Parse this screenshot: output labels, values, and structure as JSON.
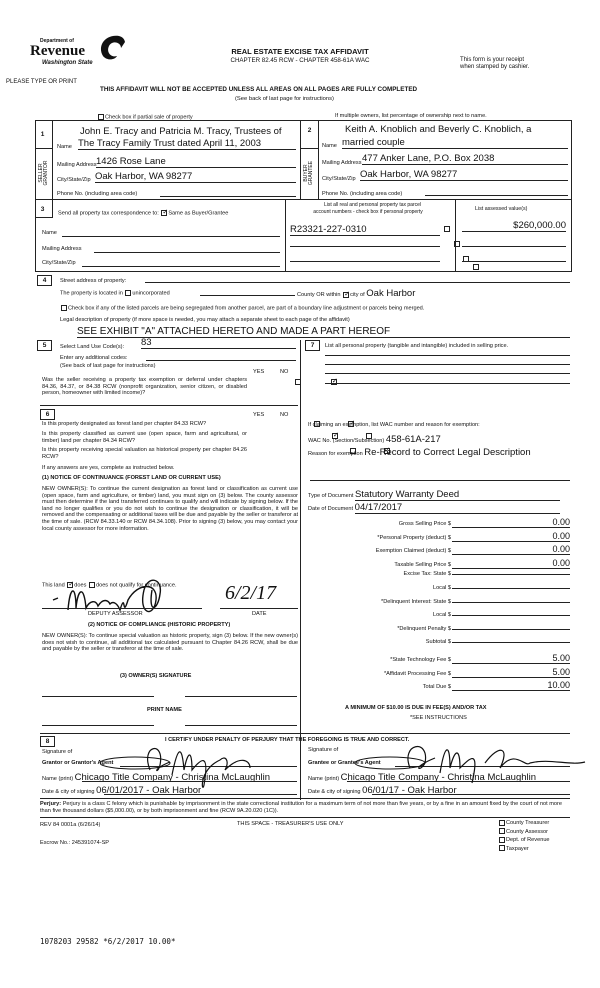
{
  "header": {
    "logo_line1": "Department of",
    "logo_line2": "Revenue",
    "logo_line3": "Washington State",
    "please": "PLEASE TYPE OR PRINT",
    "title": "REAL ESTATE EXCISE TAX AFFIDAVIT",
    "subtitle": "CHAPTER 82.45 RCW - CHAPTER 458-61A WAC",
    "receipt1": "This form is your receipt",
    "receipt2": "when stamped by cashier.",
    "warning": "THIS AFFIDAVIT WILL NOT BE ACCEPTED UNLESS ALL AREAS ON ALL PAGES ARE FULLY COMPLETED",
    "see_back": "(See back of last page for instructions)",
    "partial": "Check box if partial sale of property",
    "multiple": "If multiple owners, list percentage of ownership next to name."
  },
  "labels": {
    "name": "Name",
    "mailing": "Mailing Address",
    "city": "City/State/Zip",
    "phone": "Phone No. (including area code)",
    "seller": "SELLER GRANTOR",
    "buyer": "BUYER GRANTEE"
  },
  "seller": {
    "num": "1",
    "name1": "John E. Tracy and Patricia M. Tracy, Trustees of",
    "name2": "The Tracy Family Trust dated April 11, 2003",
    "address": "1426 Rose Lane",
    "city": "Oak Harbor, WA 98277",
    "phone": ""
  },
  "buyer": {
    "num": "2",
    "name1": "Keith A. Knoblich and Beverly C. Knoblich, a",
    "name2": "married couple",
    "address": "477 Anker Lane, P.O. Box 2038",
    "city": "Oak Harbor, WA 98277",
    "phone": ""
  },
  "sec3": {
    "num": "3",
    "send": "Send all property tax correspondence to:",
    "same": "Same as Buyer/Grantee",
    "parcel_hdr1": "List all real and personal property tax parcel",
    "parcel_hdr2": "account numbers - check box if personal property",
    "assessed_hdr": "List assessed value(s)",
    "parcel": "R23321-227-0310",
    "assessed": "$260,000.00"
  },
  "sec4": {
    "num": "4",
    "street": "Street address of property:",
    "located": "The property is located in",
    "uninc": "unincorporated",
    "county": "County OR within",
    "city_of": "city of",
    "city": "Oak Harbor",
    "segregated": "Check box if any of the listed parcels are being segregated from another parcel, are part of a boundary line adjustment or parcels being merged.",
    "legal": "Legal description of property (if more space is needed, you may attach a separate sheet to each page of the affidavit)",
    "exhibit": "SEE EXHIBIT \"A\" ATTACHED HERETO AND MADE A PART HEREOF"
  },
  "sec5": {
    "num": "5",
    "land_use": "Select Land Use Code(s):",
    "code": "83",
    "additional": "Enter any additional codes:",
    "see": "(See back of last page for instructions)",
    "yes": "YES",
    "no": "NO",
    "question": "Was the seller receiving a property tax exemption or deferral under chapters 84.36, 84.37, or 84.38 RCW (nonprofit organization, senior citizen, or disabled person, homeowner with limited income)?"
  },
  "sec6": {
    "num": "6",
    "q1": "Is this property designated as forest land per chapter 84.33 RCW?",
    "q2": "Is this property classified as current use (open space, farm and agricultural, or timber) land per chapter 84.34 RCW?",
    "q3": "Is this property receiving special valuation as historical property per chapter 84.26 RCW?",
    "if_yes": "If any answers are yes, complete as instructed below.",
    "notice1": "(1) NOTICE OF CONTINUANCE (FOREST LAND OR CURRENT USE)",
    "notice1_text": "NEW OWNER(S): To continue the current designation as forest land or classification as current use (open space, farm and agriculture, or timber) land, you must sign on (3) below. The county assessor must then determine if the land transferred continues to qualify and will indicate by signing below. If the land no longer qualifies or you do not wish to continue the designation or classification, it will be removed and the compensating or additional taxes will be due and payable by the seller or transferor at the time of sale. (RCW 84.33.140 or RCW 84.34.108). Prior to signing (3) below, you may contact your local county assessor for more information.",
    "land_a": "This land",
    "does": "does",
    "does_not": "does not qualify for continuance.",
    "deputy": "DEPUTY ASSESSOR",
    "date_lbl": "DATE",
    "date": "6/2/17",
    "notice2": "(2) NOTICE OF COMPLIANCE (HISTORIC PROPERTY)",
    "notice2_text": "NEW OWNER(S): To continue special valuation as historic property, sign (3) below. If the new owner(s) does not wish to continue, all additional tax calculated pursuant to Chapter 84.26 RCW, shall be due and payable by the seller or transferor at the time of sale.",
    "owner_sig": "(3) OWNER(S) SIGNATURE",
    "print_name": "PRINT NAME"
  },
  "sec7": {
    "num": "7",
    "text": "List all personal property (tangible and intangible) included in selling price.",
    "exemption": "If claiming an exemption, list WAC number and reason for exemption:",
    "wac_lbl": "WAC No. (Section/Subsection)",
    "wac": "458-61A-217",
    "reason_lbl": "Reason for exemption",
    "reason": "Re-Record to Correct Legal Description",
    "type_lbl": "Type of Document",
    "type": "Statutory Warranty Deed",
    "date_lbl": "Date of Document",
    "date": "04/17/2017"
  },
  "fees": [
    {
      "label": "Gross Selling Price $",
      "value": "0.00"
    },
    {
      "label": "*Personal Property (deduct) $",
      "value": "0.00"
    },
    {
      "label": "Exemption Claimed (deduct) $",
      "value": "0.00"
    },
    {
      "label": "Taxable Selling Price $",
      "value": "0.00"
    },
    {
      "label": "Excise Tax: State $",
      "value": ""
    },
    {
      "label": "Local $",
      "value": ""
    },
    {
      "label": "*Delinquent Interest: State $",
      "value": ""
    },
    {
      "label": "Local $",
      "value": ""
    },
    {
      "label": "*Delinquent Penalty $",
      "value": ""
    },
    {
      "label": "Subtotal $",
      "value": ""
    },
    {
      "label": "*State Technology Fee $",
      "value": "5.00"
    },
    {
      "label": "*Affidavit Processing Fee $",
      "value": "5.00"
    },
    {
      "label": "Total Due $",
      "value": "10.00"
    }
  ],
  "minimum": "A MINIMUM OF $10.00 IS DUE IN FEE(S) AND/OR TAX",
  "see_instr": "*SEE INSTRUCTIONS",
  "sec8": {
    "num": "8",
    "certify": "I CERTIFY UNDER PENALTY OF PERJURY THAT THE FOREGOING IS TRUE AND CORRECT.",
    "sig_of": "Signature of",
    "grantor": "Grantor or Grantor's Agent",
    "grantee": "Grantee or Grantee's Agent",
    "name_print": "Name (print)",
    "date_city": "Date & city of signing",
    "grantor_name": "Chicago Title Company - Christina McLaughlin",
    "grantor_date": "06/01/2017 - Oak Harbor",
    "grantee_name": "Chicago Title Company - Christina McLaughlin",
    "grantee_date": "06/01/17 - Oak Harbor"
  },
  "perjury_b": "Perjury:",
  "perjury": "Perjury is a class C felony which is punishable by imprisonment in the state correctional institution for a maximum term of not more than five years, or by a fine in an amount fixed by the court of not more than five thousand dollars ($5,000.00), or by both imprisonment and fine (RCW 9A.20.020 (1C)).",
  "footer": {
    "rev": "REV 84 0001a (6/26/14)",
    "treasurer": "THIS SPACE - TREASURER'S USE ONLY",
    "escrow": "Escrow No.: 245391074-SP",
    "copies": [
      "County Treasurer",
      "County Assessor",
      "Dept. of Revenue",
      "Taxpayer"
    ]
  },
  "stamp": "1078203 29582 *6/2/2017 10.00*"
}
